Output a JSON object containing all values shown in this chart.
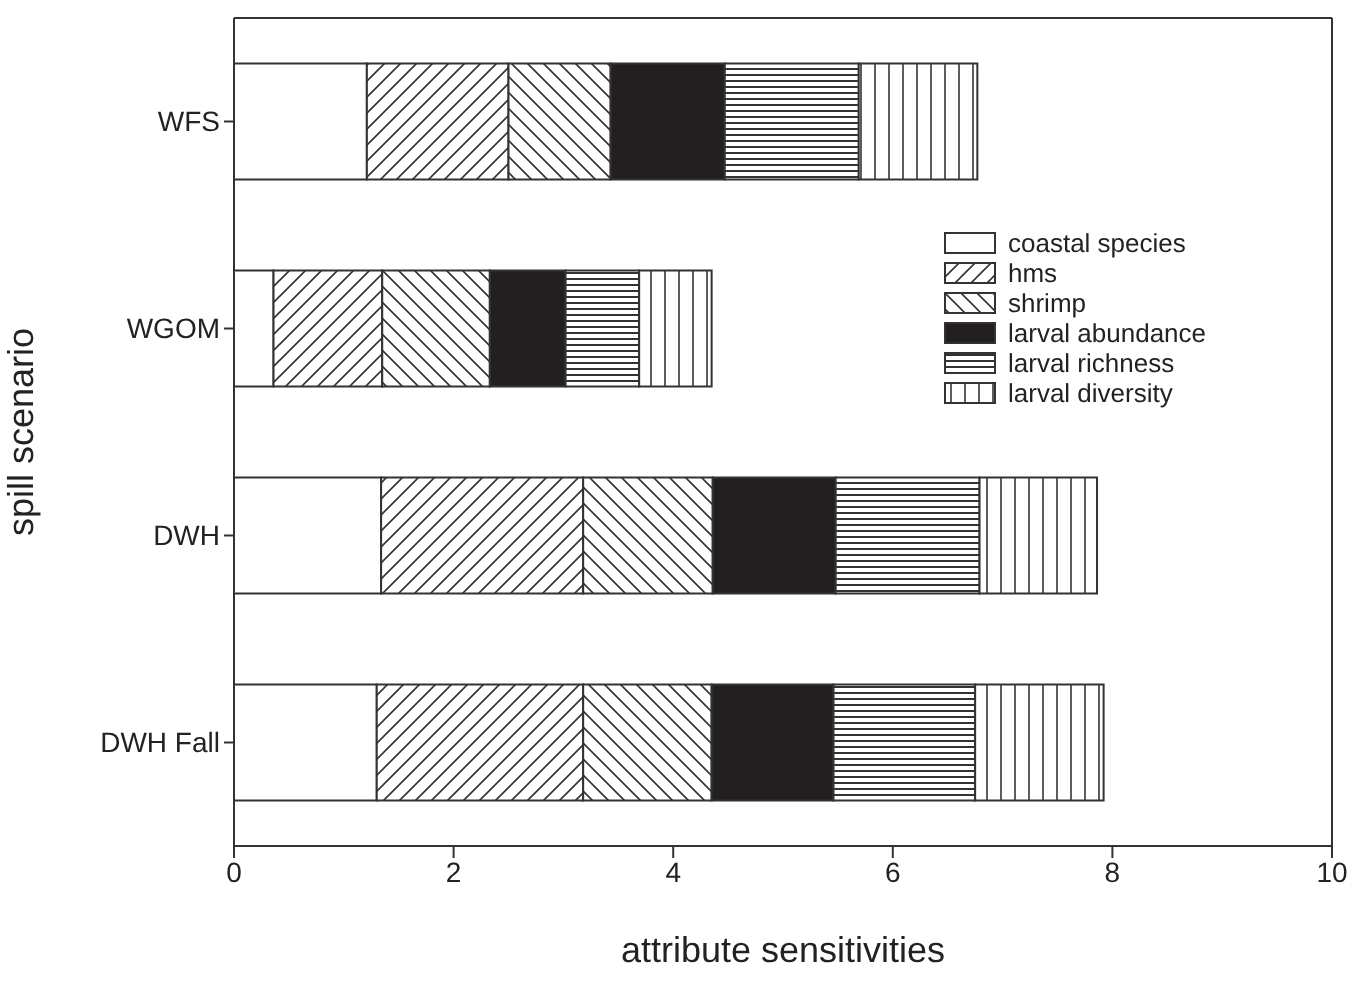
{
  "chart_data": {
    "type": "bar",
    "orientation": "horizontal",
    "stacked": true,
    "xlabel": "attribute sensitivities",
    "ylabel": "spill scenario",
    "categories": [
      "WFS",
      "WGOM",
      "DWH",
      "DWH Fall"
    ],
    "series": [
      {
        "name": "coastal species",
        "color": "#ffffff",
        "values": [
          1.21,
          0.36,
          1.34,
          1.3
        ]
      },
      {
        "name": "hms",
        "color": "#333333",
        "values": [
          1.29,
          0.99,
          1.84,
          1.88
        ]
      },
      {
        "name": "shrimp",
        "color": "#333333",
        "values": [
          0.93,
          0.98,
          1.18,
          1.17
        ]
      },
      {
        "name": "larval abundance",
        "color": "#231f20",
        "values": [
          1.04,
          0.69,
          1.12,
          1.11
        ]
      },
      {
        "name": "larval richness",
        "color": "#333333",
        "values": [
          1.22,
          0.67,
          1.31,
          1.29
        ]
      },
      {
        "name": "larval diversity",
        "color": "#333333",
        "values": [
          1.08,
          0.66,
          1.07,
          1.17
        ]
      }
    ],
    "xlim": [
      0,
      10
    ],
    "xticks": [
      0,
      2,
      4,
      6,
      8,
      10
    ],
    "legend": "top right",
    "grid": false
  }
}
